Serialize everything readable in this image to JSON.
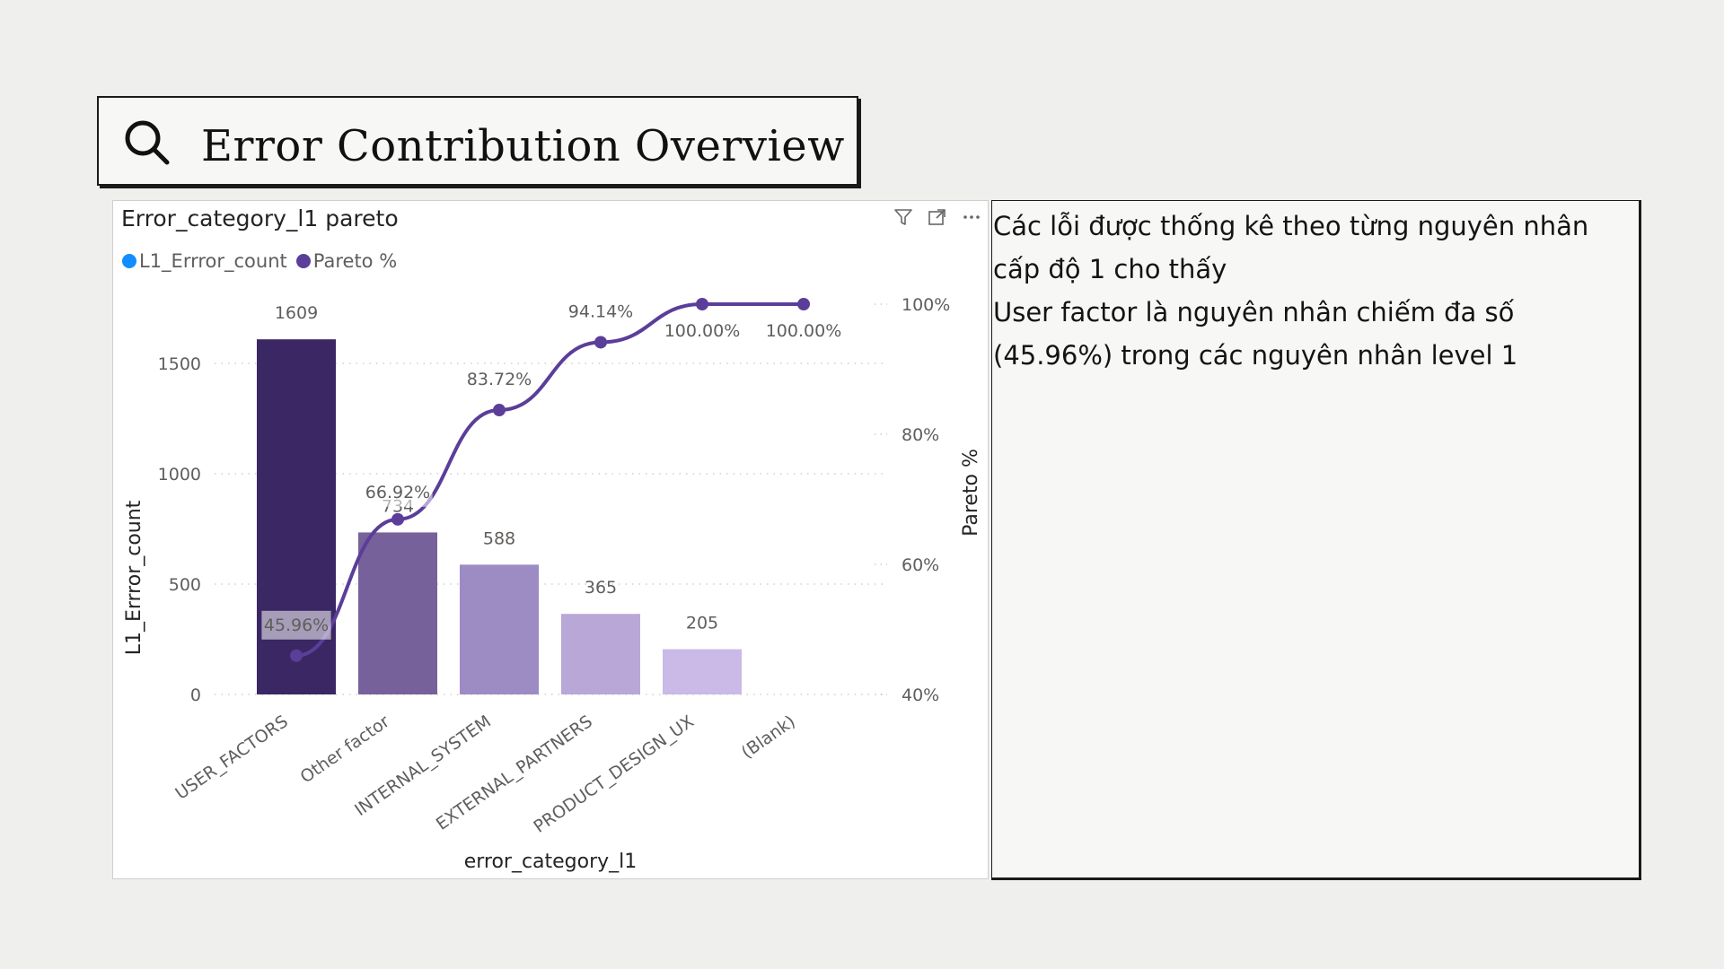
{
  "header": {
    "title": "Error Contribution Overview",
    "icon": "search-icon"
  },
  "note": {
    "lines": [
      "Các lỗi được thống kê theo từng nguyên nhân",
      "cấp độ 1 cho thấy",
      "User factor là nguyên nhân chiếm đa số",
      "(45.96%) trong các nguyên nhân level 1"
    ]
  },
  "visual": {
    "title": "Error_category_l1 pareto",
    "icons": [
      "filter-icon",
      "focus-mode-icon",
      "more-options-icon"
    ],
    "legend": [
      {
        "label": "L1_Errror_count",
        "color": "#118DFF"
      },
      {
        "label": "Pareto %",
        "color": "#5B3E99"
      }
    ]
  },
  "chart_data": {
    "type": "bar",
    "title": "Error_category_l1 pareto",
    "categories": [
      "USER_FACTORS",
      "Other factor",
      "INTERNAL_SYSTEM",
      "EXTERNAL_PARTNERS",
      "PRODUCT_DESIGN_UX",
      "(Blank)"
    ],
    "series": [
      {
        "name": "L1_Errror_count",
        "type": "bar",
        "axis": "left",
        "values": [
          1609,
          734,
          588,
          365,
          205,
          null
        ],
        "labels": [
          "1609",
          "734",
          "588",
          "365",
          "205",
          ""
        ],
        "colors": [
          "#3B2764",
          "#77619A",
          "#9D8BC4",
          "#B9A7D8",
          "#CBB9E8",
          "#DDD2F0"
        ]
      },
      {
        "name": "Pareto %",
        "type": "line",
        "axis": "right",
        "values": [
          45.96,
          66.92,
          83.72,
          94.14,
          100.0,
          100.0
        ],
        "labels": [
          "45.96%",
          "66.92%",
          "83.72%",
          "94.14%",
          "100.00%",
          "100.00%"
        ],
        "color": "#5B3E99"
      }
    ],
    "xlabel": "error_category_l1",
    "ylabel": "L1_Errror_count",
    "y2label": "Pareto %",
    "ylim": [
      0,
      1750
    ],
    "yticks": [
      0,
      500,
      1000,
      1500
    ],
    "ytick_labels": [
      "0",
      "500",
      "1000",
      "1500"
    ],
    "y2lim": [
      40,
      100
    ],
    "y2ticks": [
      40,
      60,
      80,
      100
    ],
    "y2tick_labels": [
      "40%",
      "60%",
      "80%",
      "100%"
    ],
    "grid": true,
    "legend": "top-left"
  }
}
